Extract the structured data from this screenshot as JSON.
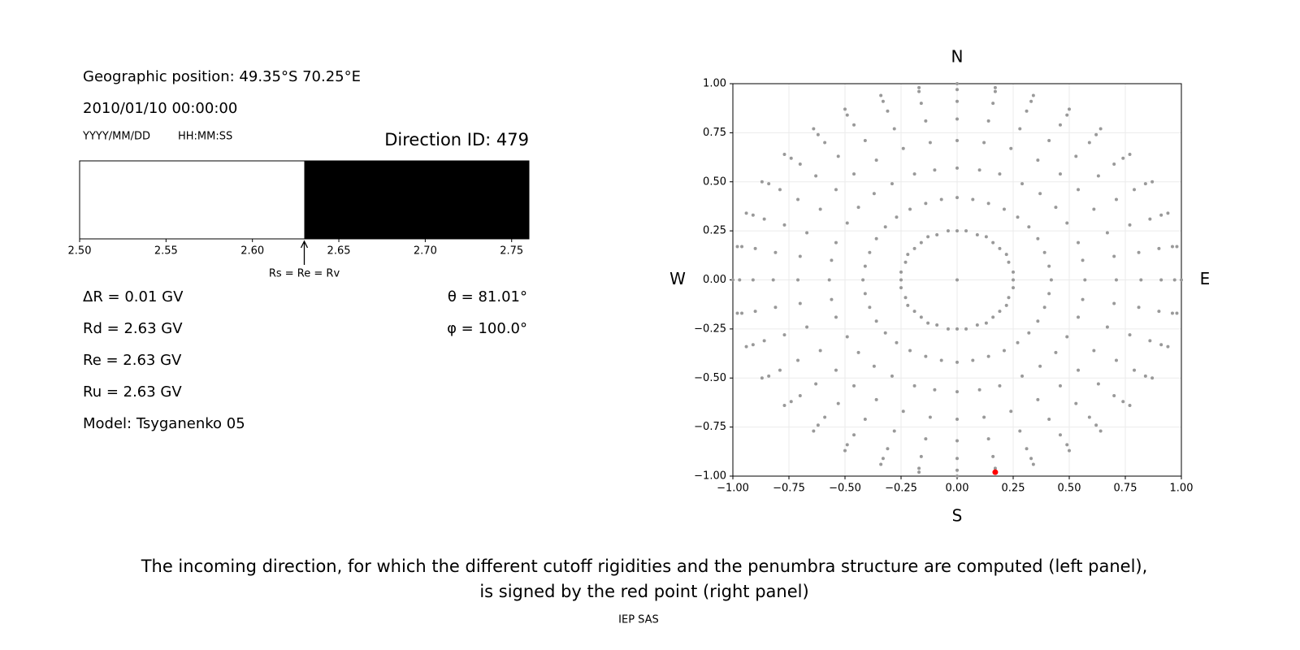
{
  "header": {
    "position": "Geographic position: 49.35°S 70.25°E",
    "datetime": "2010/01/10 00:00:00",
    "date_format": "YYYY/MM/DD",
    "time_format": "HH:MM:SS",
    "direction": "Direction ID: 479"
  },
  "info_left": [
    "ΔR = 0.01 GV",
    "Rd = 2.63 GV",
    "Re = 2.63 GV",
    "Ru = 2.63 GV",
    "Model: Tsyganenko 05"
  ],
  "info_right": [
    "θ = 81.01°",
    "φ = 100.0°"
  ],
  "chart_data": [
    {
      "type": "penumbra",
      "xlim": [
        2.5,
        2.76
      ],
      "xticks": [
        {
          "value": 2.5,
          "label": "2.50"
        },
        {
          "value": 2.55,
          "label": "2.55"
        },
        {
          "value": 2.6,
          "label": "2.60"
        },
        {
          "value": 2.65,
          "label": "2.65"
        },
        {
          "value": 2.7,
          "label": "2.70"
        },
        {
          "value": 2.75,
          "label": "2.75"
        }
      ],
      "segments": [
        {
          "from": 2.5,
          "to": 2.63,
          "color": "#ffffff"
        },
        {
          "from": 2.63,
          "to": 2.76,
          "color": "#000000"
        }
      ],
      "annotation": {
        "value": 2.63,
        "label": "Rs = Re = Rv"
      }
    },
    {
      "type": "scatter",
      "xlim": [
        -1,
        1
      ],
      "ylim": [
        -1,
        1
      ],
      "grid": true,
      "xticks": [
        {
          "value": -1,
          "label": "−1.00"
        },
        {
          "value": -0.75,
          "label": "−0.75"
        },
        {
          "value": -0.5,
          "label": "−0.50"
        },
        {
          "value": -0.25,
          "label": "−0.25"
        },
        {
          "value": 0,
          "label": "0.00"
        },
        {
          "value": 0.25,
          "label": "0.25"
        },
        {
          "value": 0.5,
          "label": "0.50"
        },
        {
          "value": 0.75,
          "label": "0.75"
        },
        {
          "value": 1,
          "label": "1.00"
        }
      ],
      "yticks": [
        {
          "value": -1,
          "label": "−1.00"
        },
        {
          "value": -0.75,
          "label": "−0.75"
        },
        {
          "value": -0.5,
          "label": "−0.50"
        },
        {
          "value": -0.25,
          "label": "−0.25"
        },
        {
          "value": 0,
          "label": "0.00"
        },
        {
          "value": 0.25,
          "label": "0.25"
        },
        {
          "value": 0.5,
          "label": "0.50"
        },
        {
          "value": 0.75,
          "label": "0.75"
        },
        {
          "value": 1,
          "label": "1.00"
        }
      ],
      "compass": {
        "top": "N",
        "bottom": "S",
        "left": "W",
        "right": "E"
      },
      "series": [
        {
          "color": "#999999",
          "x": [
            0
          ],
          "y": [
            0
          ]
        },
        {
          "color": "#999999",
          "x": [
            0,
            0.04,
            0.09,
            0.13,
            0.16,
            0.19,
            0.22,
            0.23,
            0.25,
            0.25,
            0.25,
            0.23,
            0.22,
            0.19,
            0.16,
            0.13,
            0.09,
            0.04,
            0,
            -0.04,
            -0.09,
            -0.13,
            -0.16,
            -0.19,
            -0.22,
            -0.23,
            -0.25,
            -0.25,
            -0.25,
            -0.23,
            -0.22,
            -0.19,
            -0.16,
            -0.13,
            -0.09,
            -0.04
          ],
          "y": [
            0.25,
            0.25,
            0.23,
            0.22,
            0.19,
            0.16,
            0.13,
            0.09,
            0.04,
            0,
            -0.04,
            -0.09,
            -0.13,
            -0.16,
            -0.19,
            -0.22,
            -0.23,
            -0.25,
            -0.25,
            -0.25,
            -0.23,
            -0.22,
            -0.19,
            -0.16,
            -0.13,
            -0.09,
            -0.04,
            0,
            0.04,
            0.09,
            0.13,
            0.16,
            0.19,
            0.22,
            0.23,
            0.25
          ]
        },
        {
          "color": "#999999",
          "x": [
            0,
            0.07,
            0.14,
            0.21,
            0.27,
            0.32,
            0.36,
            0.39,
            0.41,
            0.42,
            0.41,
            0.39,
            0.36,
            0.32,
            0.27,
            0.21,
            0.14,
            0.07,
            0,
            -0.07,
            -0.14,
            -0.21,
            -0.27,
            -0.32,
            -0.36,
            -0.39,
            -0.41,
            -0.42,
            -0.41,
            -0.39,
            -0.36,
            -0.32,
            -0.27,
            -0.21,
            -0.14,
            -0.07
          ],
          "y": [
            0.42,
            0.41,
            0.39,
            0.36,
            0.32,
            0.27,
            0.21,
            0.14,
            0.07,
            0,
            -0.07,
            -0.14,
            -0.21,
            -0.27,
            -0.32,
            -0.36,
            -0.39,
            -0.41,
            -0.42,
            -0.41,
            -0.39,
            -0.36,
            -0.32,
            -0.27,
            -0.21,
            -0.14,
            -0.07,
            0,
            0.07,
            0.14,
            0.21,
            0.27,
            0.32,
            0.36,
            0.39,
            0.41
          ]
        },
        {
          "color": "#999999",
          "x": [
            0,
            0.1,
            0.19,
            0.29,
            0.37,
            0.44,
            0.49,
            0.54,
            0.56,
            0.57,
            0.56,
            0.54,
            0.49,
            0.44,
            0.37,
            0.29,
            0.19,
            0.1,
            0,
            -0.1,
            -0.19,
            -0.29,
            -0.37,
            -0.44,
            -0.49,
            -0.54,
            -0.56,
            -0.57,
            -0.56,
            -0.54,
            -0.49,
            -0.44,
            -0.37,
            -0.29,
            -0.19,
            -0.1
          ],
          "y": [
            0.57,
            0.56,
            0.54,
            0.49,
            0.44,
            0.37,
            0.29,
            0.19,
            0.1,
            0,
            -0.1,
            -0.19,
            -0.29,
            -0.37,
            -0.44,
            -0.49,
            -0.54,
            -0.56,
            -0.57,
            -0.56,
            -0.54,
            -0.49,
            -0.44,
            -0.37,
            -0.29,
            -0.19,
            -0.1,
            0,
            0.1,
            0.19,
            0.29,
            0.37,
            0.44,
            0.49,
            0.54,
            0.56
          ]
        },
        {
          "color": "#999999",
          "x": [
            0,
            0.12,
            0.24,
            0.36,
            0.46,
            0.54,
            0.61,
            0.67,
            0.7,
            0.71,
            0.7,
            0.67,
            0.61,
            0.54,
            0.46,
            0.36,
            0.24,
            0.12,
            0,
            -0.12,
            -0.24,
            -0.36,
            -0.46,
            -0.54,
            -0.61,
            -0.67,
            -0.7,
            -0.71,
            -0.7,
            -0.67,
            -0.61,
            -0.54,
            -0.46,
            -0.36,
            -0.24,
            -0.12
          ],
          "y": [
            0.71,
            0.7,
            0.67,
            0.61,
            0.54,
            0.46,
            0.36,
            0.24,
            0.12,
            0,
            -0.12,
            -0.24,
            -0.36,
            -0.46,
            -0.54,
            -0.61,
            -0.67,
            -0.7,
            -0.71,
            -0.7,
            -0.67,
            -0.61,
            -0.54,
            -0.46,
            -0.36,
            -0.24,
            -0.12,
            0,
            0.12,
            0.24,
            0.36,
            0.46,
            0.54,
            0.61,
            0.67,
            0.7
          ]
        },
        {
          "color": "#999999",
          "x": [
            0,
            0.14,
            0.28,
            0.41,
            0.53,
            0.63,
            0.71,
            0.77,
            0.81,
            0.82,
            0.81,
            0.77,
            0.71,
            0.63,
            0.53,
            0.41,
            0.28,
            0.14,
            0,
            -0.14,
            -0.28,
            -0.41,
            -0.53,
            -0.63,
            -0.71,
            -0.77,
            -0.81,
            -0.82,
            -0.81,
            -0.77,
            -0.71,
            -0.63,
            -0.53,
            -0.41,
            -0.28,
            -0.14
          ],
          "y": [
            0.82,
            0.81,
            0.77,
            0.71,
            0.63,
            0.53,
            0.41,
            0.28,
            0.14,
            0,
            -0.14,
            -0.28,
            -0.41,
            -0.53,
            -0.63,
            -0.71,
            -0.77,
            -0.81,
            -0.82,
            -0.81,
            -0.77,
            -0.71,
            -0.63,
            -0.53,
            -0.41,
            -0.28,
            -0.14,
            0,
            0.14,
            0.28,
            0.41,
            0.53,
            0.63,
            0.71,
            0.77,
            0.81
          ]
        },
        {
          "color": "#999999",
          "x": [
            0,
            0.16,
            0.31,
            0.46,
            0.59,
            0.7,
            0.79,
            0.86,
            0.9,
            0.91,
            0.9,
            0.86,
            0.79,
            0.7,
            0.59,
            0.46,
            0.31,
            0.16,
            0,
            -0.16,
            -0.31,
            -0.46,
            -0.59,
            -0.7,
            -0.79,
            -0.86,
            -0.9,
            -0.91,
            -0.9,
            -0.86,
            -0.79,
            -0.7,
            -0.59,
            -0.46,
            -0.31,
            -0.16
          ],
          "y": [
            0.91,
            0.9,
            0.86,
            0.79,
            0.7,
            0.59,
            0.46,
            0.31,
            0.16,
            0,
            -0.16,
            -0.31,
            -0.46,
            -0.59,
            -0.7,
            -0.79,
            -0.86,
            -0.9,
            -0.91,
            -0.9,
            -0.86,
            -0.79,
            -0.7,
            -0.59,
            -0.46,
            -0.31,
            -0.16,
            0,
            0.16,
            0.31,
            0.46,
            0.59,
            0.7,
            0.79,
            0.86,
            0.9
          ]
        },
        {
          "color": "#999999",
          "x": [
            0,
            0.17,
            0.33,
            0.49,
            0.62,
            0.74,
            0.84,
            0.91,
            0.96,
            0.97,
            0.96,
            0.91,
            0.84,
            0.74,
            0.62,
            0.49,
            0.33,
            0.17,
            0,
            -0.17,
            -0.33,
            -0.49,
            -0.62,
            -0.74,
            -0.84,
            -0.91,
            -0.96,
            -0.97,
            -0.96,
            -0.91,
            -0.84,
            -0.74,
            -0.62,
            -0.49,
            -0.33,
            -0.17
          ],
          "y": [
            0.97,
            0.96,
            0.91,
            0.84,
            0.74,
            0.62,
            0.49,
            0.33,
            0.17,
            0,
            -0.17,
            -0.33,
            -0.49,
            -0.62,
            -0.74,
            -0.84,
            -0.91,
            -0.96,
            -0.97,
            -0.96,
            -0.91,
            -0.84,
            -0.74,
            -0.62,
            -0.49,
            -0.33,
            -0.17,
            0,
            0.17,
            0.33,
            0.49,
            0.62,
            0.74,
            0.84,
            0.91,
            0.96
          ]
        },
        {
          "color": "#999999",
          "x": [
            0,
            0.17,
            0.34,
            0.5,
            0.64,
            0.77,
            0.87,
            0.94,
            0.98,
            1,
            0.98,
            0.94,
            0.87,
            0.77,
            0.64,
            0.5,
            0.34,
            0.17,
            0,
            -0.17,
            -0.34,
            -0.5,
            -0.64,
            -0.77,
            -0.87,
            -0.94,
            -0.98,
            -1,
            -0.98,
            -0.94,
            -0.87,
            -0.77,
            -0.64,
            -0.5,
            -0.34,
            -0.17
          ],
          "y": [
            1,
            0.98,
            0.94,
            0.87,
            0.77,
            0.64,
            0.5,
            0.34,
            0.17,
            0,
            -0.17,
            -0.34,
            -0.5,
            -0.64,
            -0.77,
            -0.87,
            -0.94,
            -0.98,
            -1,
            -0.98,
            -0.94,
            -0.87,
            -0.77,
            -0.64,
            -0.5,
            -0.34,
            -0.17,
            0,
            0.17,
            0.34,
            0.5,
            0.64,
            0.77,
            0.87,
            0.94,
            0.98
          ]
        },
        {
          "color": "#ff0000",
          "x": [
            0.17
          ],
          "y": [
            -0.98
          ]
        }
      ]
    }
  ],
  "caption": [
    "The incoming direction, for which the different cutoff rigidities and the penumbra structure are computed (left panel),",
    "is signed by the red point (right panel)"
  ],
  "footer": "IEP SAS"
}
